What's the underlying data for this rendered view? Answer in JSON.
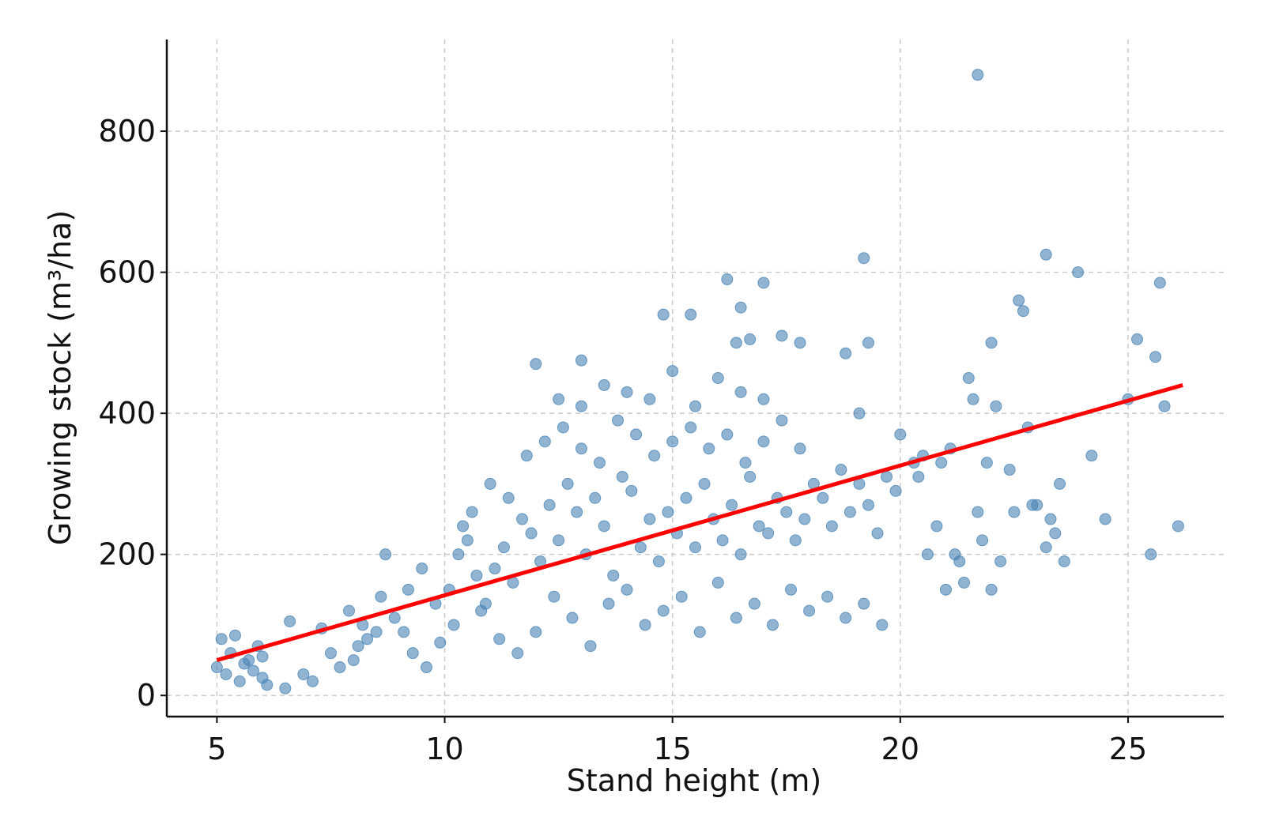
{
  "chart_data": {
    "type": "scatter",
    "xlabel": "Stand height (m)",
    "ylabel": "Growing stock (m³/ha)",
    "xlim": [
      3.9,
      27.1
    ],
    "ylim": [
      -30,
      930
    ],
    "x_ticks": [
      5,
      10,
      15,
      20,
      25
    ],
    "y_ticks": [
      0,
      200,
      400,
      600,
      800
    ],
    "grid": true,
    "colors": {
      "points": "#4682b4",
      "fit_line": "#ff0000"
    },
    "fit_line": {
      "x": [
        5.0,
        26.2
      ],
      "y": [
        50,
        440
      ]
    },
    "points": {
      "x": [
        5.0,
        5.1,
        5.2,
        5.3,
        5.5,
        5.6,
        5.8,
        5.9,
        6.0,
        6.0,
        5.4,
        5.7,
        6.1,
        6.6,
        6.5,
        6.9,
        7.1,
        7.3,
        7.5,
        7.7,
        7.9,
        8.1,
        8.2,
        8.5,
        8.7,
        9.2,
        9.5,
        9.8,
        10.4,
        10.6,
        11.0,
        11.4,
        8.0,
        8.3,
        8.6,
        8.9,
        9.1,
        9.3,
        9.6,
        9.9,
        10.1,
        10.3,
        10.5,
        10.7,
        10.9,
        11.1,
        11.3,
        11.5,
        11.7,
        11.9,
        12.1,
        12.3,
        12.5,
        12.7,
        12.9,
        13.1,
        13.3,
        13.5,
        13.7,
        13.9,
        14.1,
        14.3,
        14.5,
        14.7,
        14.9,
        15.1,
        15.3,
        15.5,
        15.7,
        15.9,
        16.1,
        16.3,
        16.5,
        16.7,
        16.9,
        17.1,
        17.3,
        17.5,
        17.7,
        17.9,
        18.1,
        18.3,
        18.5,
        18.7,
        18.9,
        19.1,
        19.3,
        19.5,
        19.7,
        19.9,
        10.2,
        10.8,
        11.2,
        11.6,
        12.0,
        12.4,
        12.8,
        13.2,
        13.6,
        14.0,
        14.4,
        14.8,
        15.2,
        15.6,
        16.0,
        16.4,
        16.8,
        17.2,
        17.6,
        18.0,
        18.4,
        18.8,
        19.2,
        19.6,
        11.8,
        12.2,
        12.6,
        13.0,
        13.4,
        13.8,
        14.2,
        14.6,
        15.0,
        15.4,
        15.8,
        16.2,
        16.6,
        17.0,
        17.4,
        17.8,
        12.0,
        12.5,
        13.0,
        13.5,
        14.0,
        14.5,
        15.0,
        15.5,
        16.0,
        16.5,
        17.0,
        13.0,
        14.8,
        15.4,
        16.5,
        17.0,
        16.2,
        16.4,
        16.7,
        17.4,
        17.8,
        18.8,
        19.2,
        19.3,
        19.1,
        20.0,
        20.3,
        20.5,
        20.9,
        21.0,
        21.1,
        21.5,
        21.6,
        21.7,
        21.9,
        22.0,
        22.1,
        22.2,
        22.4,
        22.5,
        22.6,
        22.7,
        22.8,
        23.0,
        23.2,
        23.3,
        23.4,
        23.5,
        23.6,
        21.7,
        23.2,
        23.9,
        24.2,
        24.5,
        25.0,
        25.2,
        25.5,
        25.6,
        25.7,
        25.8,
        26.1,
        21.2,
        21.8,
        22.9,
        20.4,
        20.6,
        21.3,
        22.0,
        20.8,
        21.4
      ],
      "y": [
        40,
        80,
        30,
        60,
        20,
        45,
        35,
        70,
        25,
        55,
        85,
        50,
        15,
        105,
        10,
        30,
        20,
        95,
        60,
        40,
        120,
        70,
        100,
        90,
        200,
        150,
        180,
        130,
        240,
        260,
        300,
        280,
        50,
        80,
        140,
        110,
        90,
        60,
        40,
        75,
        150,
        200,
        220,
        170,
        130,
        180,
        210,
        160,
        250,
        230,
        190,
        270,
        220,
        300,
        260,
        200,
        280,
        240,
        170,
        310,
        290,
        210,
        250,
        190,
        260,
        230,
        280,
        210,
        300,
        250,
        220,
        270,
        200,
        310,
        240,
        230,
        280,
        260,
        220,
        250,
        300,
        280,
        240,
        320,
        260,
        300,
        270,
        230,
        310,
        290,
        100,
        120,
        80,
        60,
        90,
        140,
        110,
        70,
        130,
        150,
        100,
        120,
        140,
        90,
        160,
        110,
        130,
        100,
        150,
        120,
        140,
        110,
        130,
        100,
        340,
        360,
        380,
        350,
        330,
        390,
        370,
        340,
        360,
        380,
        350,
        370,
        330,
        360,
        390,
        350,
        470,
        420,
        410,
        440,
        430,
        420,
        460,
        410,
        450,
        430,
        420,
        475,
        540,
        540,
        550,
        585,
        590,
        500,
        505,
        510,
        500,
        485,
        620,
        500,
        400,
        370,
        330,
        340,
        330,
        150,
        350,
        450,
        420,
        260,
        330,
        500,
        410,
        190,
        320,
        260,
        560,
        545,
        380,
        270,
        625,
        250,
        230,
        300,
        190,
        880,
        210,
        600,
        340,
        250,
        420,
        505,
        200,
        480,
        585,
        410,
        240,
        200,
        220,
        270,
        310,
        200,
        190,
        150,
        240,
        160
      ]
    }
  }
}
